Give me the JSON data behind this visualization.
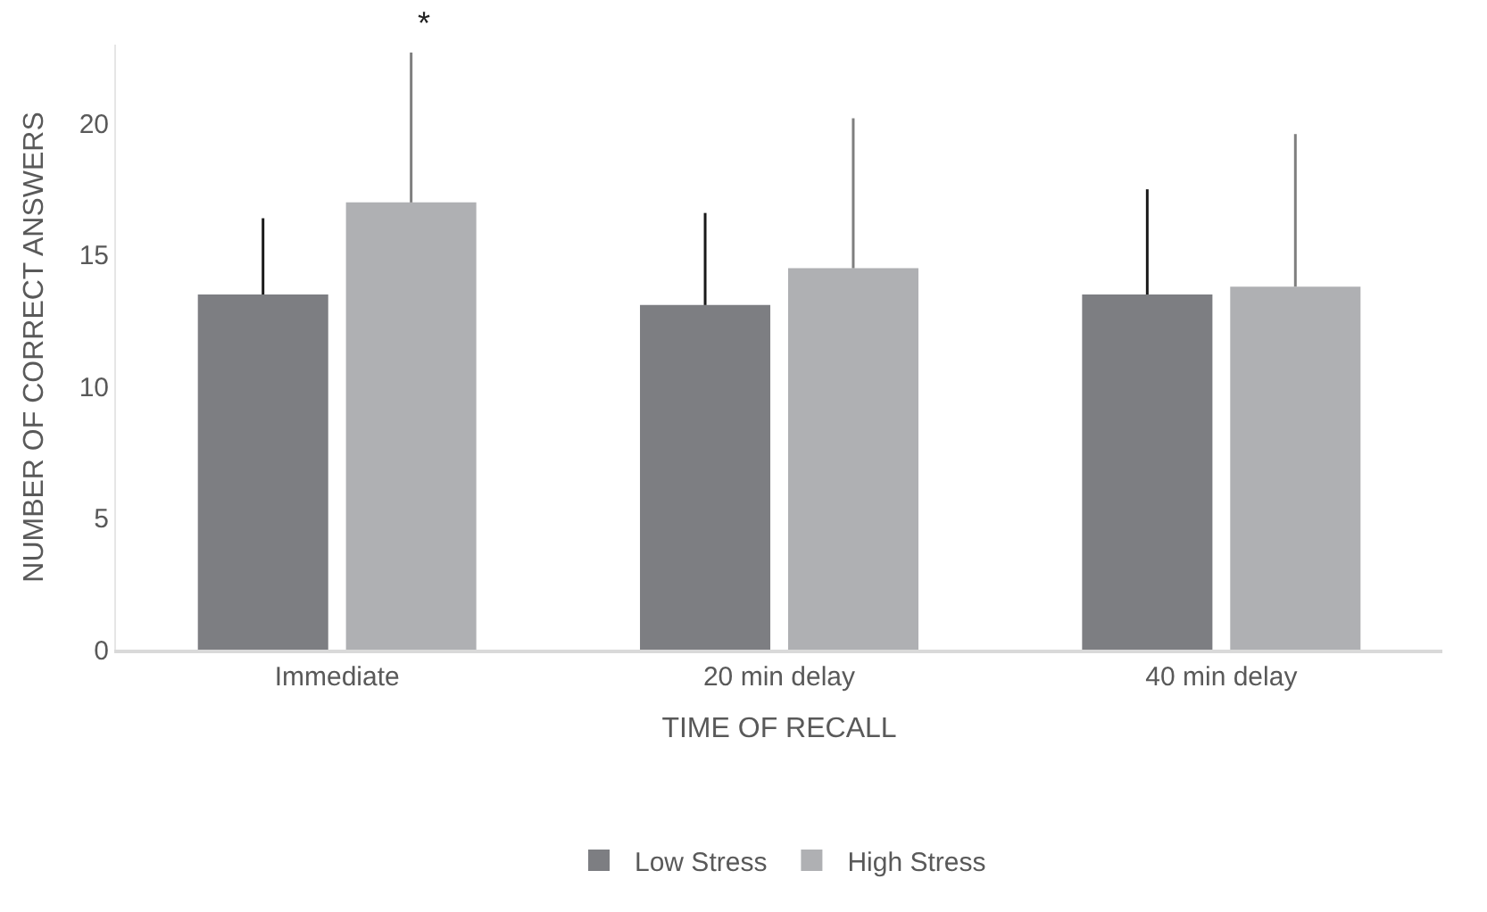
{
  "chart_data": {
    "type": "bar",
    "xlabel": "TIME OF RECALL",
    "ylabel": "NUMBER OF CORRECT ANSWERS",
    "categories": [
      "Immediate",
      "20 min delay",
      "40 min delay"
    ],
    "series": [
      {
        "name": "Low Stress",
        "color": "#7d7e82",
        "values": [
          13.5,
          13.1,
          13.5
        ],
        "errors": [
          [
            13.5,
            16.4
          ],
          [
            13.1,
            16.6
          ],
          [
            13.5,
            17.5
          ]
        ]
      },
      {
        "name": "High Stress",
        "color": "#afb0b3",
        "values": [
          17.0,
          14.5,
          13.8
        ],
        "errors": [
          [
            17.0,
            22.7
          ],
          [
            14.5,
            20.2
          ],
          [
            13.8,
            19.6
          ]
        ]
      }
    ],
    "ylim": [
      0,
      23
    ],
    "yticks": [
      0,
      5,
      10,
      15,
      20
    ],
    "annotations": [
      "*"
    ],
    "legend": "bottom"
  }
}
